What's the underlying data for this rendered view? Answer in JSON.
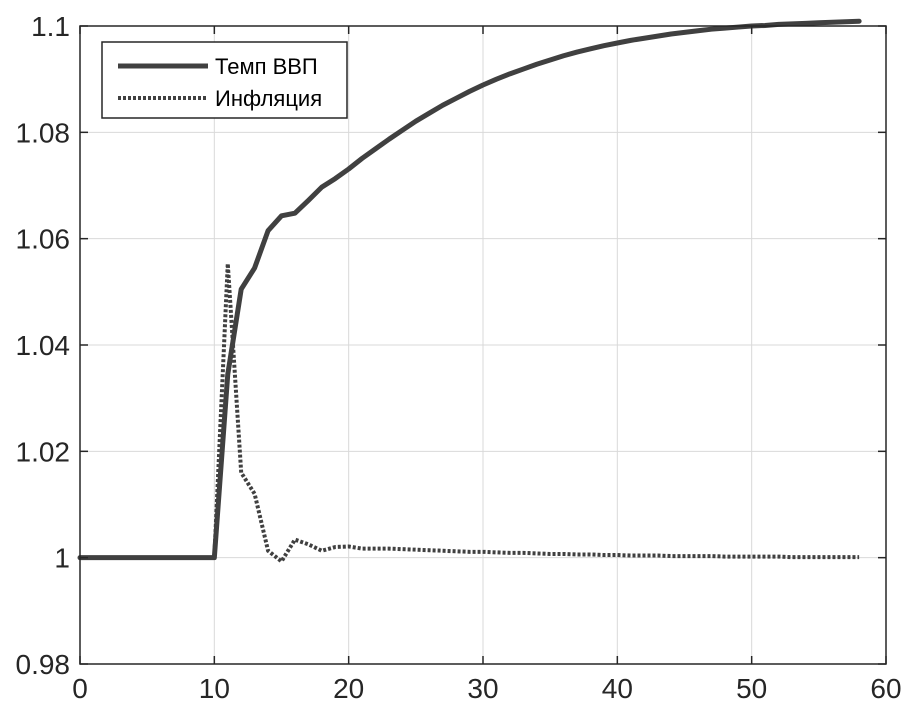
{
  "chart_data": {
    "type": "line",
    "title": "",
    "xlabel": "",
    "ylabel": "",
    "xlim": [
      0,
      60
    ],
    "ylim": [
      0.98,
      1.1
    ],
    "xticks": [
      0,
      10,
      20,
      30,
      40,
      50,
      60
    ],
    "xtick_labels": [
      "0",
      "10",
      "20",
      "30",
      "40",
      "50",
      "60"
    ],
    "yticks": [
      0.98,
      1.0,
      1.02,
      1.04,
      1.06,
      1.08,
      1.1
    ],
    "ytick_labels": [
      "0.98",
      "1",
      "1.02",
      "1.04",
      "1.06",
      "1.08",
      "1.1"
    ],
    "grid": true,
    "legend_position": "top-left",
    "series": [
      {
        "name": "Темп ВВП",
        "style": "solid",
        "color": "#404040",
        "x": [
          0,
          1,
          2,
          3,
          4,
          5,
          6,
          7,
          8,
          9,
          10,
          11,
          12,
          13,
          14,
          15,
          16,
          17,
          18,
          19,
          20,
          21,
          22,
          23,
          24,
          25,
          26,
          27,
          28,
          29,
          30,
          31,
          32,
          33,
          34,
          35,
          36,
          37,
          38,
          39,
          40,
          41,
          42,
          43,
          44,
          45,
          46,
          47,
          48,
          49,
          50,
          51,
          52,
          53,
          54,
          55,
          56,
          57,
          58
        ],
        "y": [
          1.0,
          1.0,
          1.0,
          1.0,
          1.0,
          1.0,
          1.0,
          1.0,
          1.0,
          1.0,
          1.0,
          1.0345,
          1.0505,
          1.0545,
          1.0615,
          1.0643,
          1.0648,
          1.0672,
          1.0697,
          1.0713,
          1.0731,
          1.0751,
          1.0769,
          1.0787,
          1.0804,
          1.0821,
          1.0836,
          1.0851,
          1.0864,
          1.0877,
          1.0889,
          1.09,
          1.091,
          1.0919,
          1.0928,
          1.0936,
          1.0944,
          1.0951,
          1.0957,
          1.0963,
          1.0968,
          1.0973,
          1.0977,
          1.0981,
          1.0985,
          1.0988,
          1.0991,
          1.0994,
          1.0996,
          1.0998,
          1.1,
          1.1001,
          1.1003,
          1.1004,
          1.1005,
          1.1006,
          1.1007,
          1.1008,
          1.1009
        ]
      },
      {
        "name": "Инфляция",
        "style": "dotted",
        "color": "#404040",
        "x": [
          0,
          1,
          2,
          3,
          4,
          5,
          6,
          7,
          8,
          9,
          10,
          11,
          12,
          13,
          14,
          15,
          16,
          17,
          18,
          19,
          20,
          21,
          22,
          23,
          24,
          25,
          26,
          27,
          28,
          29,
          30,
          31,
          32,
          33,
          34,
          35,
          36,
          37,
          38,
          39,
          40,
          41,
          42,
          43,
          44,
          45,
          46,
          47,
          48,
          49,
          50,
          51,
          52,
          53,
          54,
          55,
          56,
          57,
          58
        ],
        "y": [
          1.0,
          1.0,
          1.0,
          1.0,
          1.0,
          1.0,
          1.0,
          1.0,
          1.0,
          1.0,
          1.0,
          1.0553,
          1.016,
          1.012,
          1.0013,
          0.9993,
          1.0034,
          1.0025,
          1.0013,
          1.002,
          1.0021,
          1.0017,
          1.0017,
          1.0017,
          1.0016,
          1.0015,
          1.0014,
          1.0013,
          1.0012,
          1.0011,
          1.0011,
          1.001,
          1.0009,
          1.0009,
          1.0008,
          1.0007,
          1.0007,
          1.0006,
          1.0006,
          1.0005,
          1.0005,
          1.0004,
          1.0004,
          1.0004,
          1.0003,
          1.0003,
          1.0003,
          1.0003,
          1.0002,
          1.0002,
          1.0002,
          1.0002,
          1.0002,
          1.0001,
          1.0001,
          1.0001,
          1.0001,
          1.0001,
          1.0001
        ]
      }
    ]
  }
}
